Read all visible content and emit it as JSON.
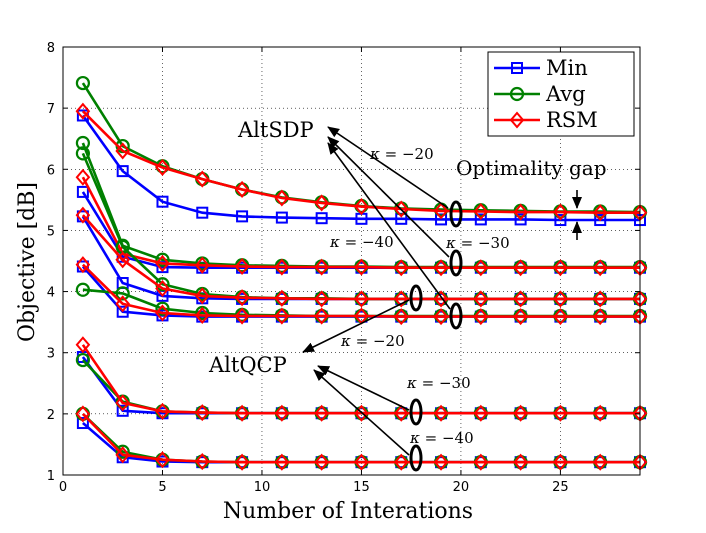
{
  "chart_data": {
    "type": "line",
    "xlabel": "Number of Interations",
    "ylabel": "Objective [dB]",
    "xlim": [
      0,
      29
    ],
    "ylim": [
      1,
      8
    ],
    "xticks": [
      "0",
      "5",
      "10",
      "15",
      "20",
      "25"
    ],
    "yticks": [
      "1",
      "2",
      "3",
      "4",
      "5",
      "6",
      "7",
      "8"
    ],
    "grid": true,
    "legend_position": "top-right",
    "legend": [
      "Min",
      "Avg",
      "RSM"
    ],
    "x": [
      1,
      3,
      5,
      7,
      9,
      11,
      13,
      15,
      17,
      19,
      21,
      23,
      25,
      27,
      29
    ],
    "groups": [
      {
        "method": "AltSDP",
        "kappa": "κ = −20",
        "Min": [
          6.88,
          5.97,
          5.47,
          5.29,
          5.23,
          5.21,
          5.2,
          5.19,
          5.19,
          5.18,
          5.18,
          5.18,
          5.17,
          5.17,
          5.17
        ],
        "Avg": [
          7.41,
          6.38,
          6.05,
          5.84,
          5.67,
          5.54,
          5.46,
          5.4,
          5.36,
          5.34,
          5.33,
          5.32,
          5.31,
          5.31,
          5.3
        ],
        "RSM": [
          6.95,
          6.3,
          6.03,
          5.84,
          5.67,
          5.53,
          5.45,
          5.39,
          5.35,
          5.32,
          5.31,
          5.3,
          5.3,
          5.29,
          5.29
        ]
      },
      {
        "method": "AltSDP",
        "kappa": "κ = −30",
        "Min": [
          5.63,
          4.57,
          4.4,
          4.39,
          4.39,
          4.39,
          4.39,
          4.39,
          4.39,
          4.39,
          4.39,
          4.39,
          4.39,
          4.39,
          4.39
        ],
        "Avg": [
          6.43,
          4.75,
          4.52,
          4.46,
          4.43,
          4.42,
          4.41,
          4.41,
          4.4,
          4.4,
          4.4,
          4.4,
          4.4,
          4.4,
          4.4
        ],
        "RSM": [
          5.87,
          4.62,
          4.46,
          4.43,
          4.41,
          4.4,
          4.4,
          4.4,
          4.39,
          4.39,
          4.39,
          4.39,
          4.39,
          4.39,
          4.39
        ]
      },
      {
        "method": "AltSDP",
        "kappa": "κ = −40",
        "Min": [
          5.23,
          4.14,
          3.93,
          3.89,
          3.88,
          3.88,
          3.88,
          3.88,
          3.88,
          3.88,
          3.88,
          3.88,
          3.88,
          3.88,
          3.88
        ],
        "Avg": [
          6.26,
          4.73,
          4.12,
          3.96,
          3.91,
          3.89,
          3.89,
          3.88,
          3.88,
          3.88,
          3.88,
          3.88,
          3.88,
          3.88,
          3.88
        ],
        "RSM": [
          5.25,
          4.52,
          4.05,
          3.93,
          3.9,
          3.89,
          3.88,
          3.88,
          3.88,
          3.88,
          3.88,
          3.88,
          3.88,
          3.88,
          3.88
        ]
      },
      {
        "method": "AltQCP",
        "kappa": "κ = −20",
        "Min": [
          4.41,
          3.67,
          3.61,
          3.59,
          3.59,
          3.59,
          3.59,
          3.59,
          3.59,
          3.59,
          3.59,
          3.59,
          3.59,
          3.59,
          3.59
        ],
        "Avg": [
          4.03,
          3.97,
          3.72,
          3.65,
          3.62,
          3.61,
          3.6,
          3.6,
          3.6,
          3.6,
          3.6,
          3.6,
          3.6,
          3.6,
          3.6
        ],
        "RSM": [
          4.44,
          3.8,
          3.65,
          3.61,
          3.6,
          3.6,
          3.6,
          3.6,
          3.59,
          3.59,
          3.59,
          3.59,
          3.59,
          3.59,
          3.59
        ]
      },
      {
        "method": "AltQCP",
        "kappa": "κ = −30",
        "Min": [
          2.93,
          2.05,
          2.01,
          2.01,
          2.01,
          2.01,
          2.01,
          2.01,
          2.01,
          2.01,
          2.01,
          2.01,
          2.01,
          2.01,
          2.01
        ],
        "Avg": [
          2.88,
          2.2,
          2.04,
          2.02,
          2.01,
          2.01,
          2.01,
          2.01,
          2.01,
          2.01,
          2.01,
          2.01,
          2.01,
          2.01,
          2.01
        ],
        "RSM": [
          3.13,
          2.18,
          2.04,
          2.02,
          2.01,
          2.01,
          2.01,
          2.01,
          2.01,
          2.01,
          2.01,
          2.01,
          2.01,
          2.01,
          2.01
        ]
      },
      {
        "method": "AltQCP",
        "kappa": "κ = −40",
        "Min": [
          1.85,
          1.29,
          1.22,
          1.21,
          1.21,
          1.21,
          1.21,
          1.21,
          1.21,
          1.21,
          1.21,
          1.21,
          1.21,
          1.21,
          1.21
        ],
        "Avg": [
          2.0,
          1.38,
          1.25,
          1.22,
          1.21,
          1.21,
          1.21,
          1.21,
          1.21,
          1.21,
          1.21,
          1.21,
          1.21,
          1.21,
          1.21
        ],
        "RSM": [
          2.0,
          1.33,
          1.25,
          1.22,
          1.21,
          1.21,
          1.21,
          1.21,
          1.21,
          1.21,
          1.21,
          1.21,
          1.21,
          1.21,
          1.21
        ]
      }
    ],
    "annotations": {
      "altsdp": "AltSDP",
      "altqcp": "AltQCP",
      "optimality_gap": "Optimality gap",
      "kappa_prefix": "κ",
      "sdp_k20": "= −20",
      "sdp_k30": "= −30",
      "sdp_k40": "= −40",
      "qcp_k20": "= −20",
      "qcp_k30": "= −30",
      "qcp_k40": "= −40"
    }
  },
  "colors": {
    "Min": "#0000ff",
    "Avg": "#008000",
    "RSM": "#ff0000"
  }
}
